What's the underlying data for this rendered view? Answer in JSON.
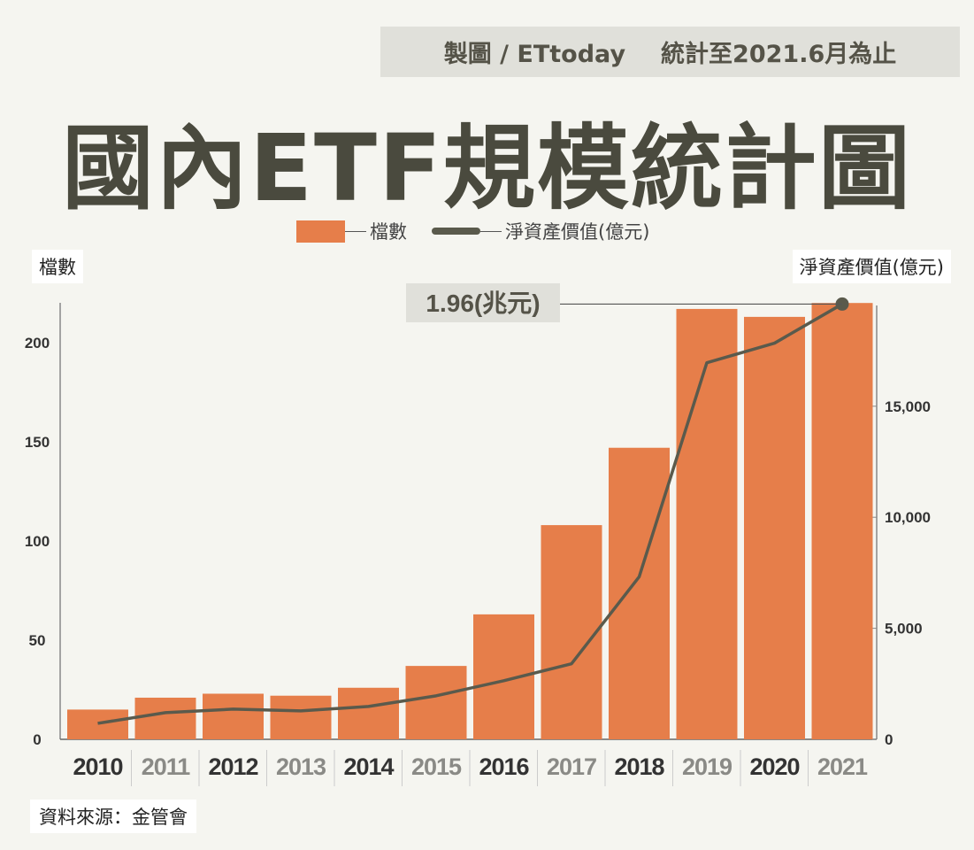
{
  "header": {
    "credit": "製圖 / ETtoday",
    "note": "統計至2021.6月為止"
  },
  "title": "國內ETF規模統計圖",
  "source": "資料來源：金管會",
  "chart_data": {
    "type": "bar+line",
    "title": "國內ETF規模統計圖",
    "categories": [
      "2010",
      "2011",
      "2012",
      "2013",
      "2014",
      "2015",
      "2016",
      "2017",
      "2018",
      "2019",
      "2020",
      "2021"
    ],
    "series": [
      {
        "name": "檔數",
        "type": "bar",
        "axis": "left",
        "color": "#e67e4a",
        "values": [
          15,
          21,
          23,
          22,
          26,
          37,
          63,
          108,
          147,
          217,
          213,
          220
        ]
      },
      {
        "name": "淨資產價值(億元)",
        "type": "line",
        "axis": "right",
        "color": "#5a5a4c",
        "values": [
          720,
          1200,
          1360,
          1280,
          1480,
          1960,
          2640,
          3400,
          7320,
          16960,
          17840,
          19600
        ]
      }
    ],
    "ylabel_left": "檔數",
    "ylabel_right": "淨資產價值(億元)",
    "ylim_left": [
      0,
      220
    ],
    "yticks_left": [
      "0",
      "50",
      "100",
      "150",
      "200"
    ],
    "ylim_right": [
      0,
      19600
    ],
    "yticks_right": [
      "0",
      "5,000",
      "10,000",
      "15,000"
    ],
    "annotation": "1.96(兆元)",
    "legend_position": "top-center",
    "grid": false
  }
}
